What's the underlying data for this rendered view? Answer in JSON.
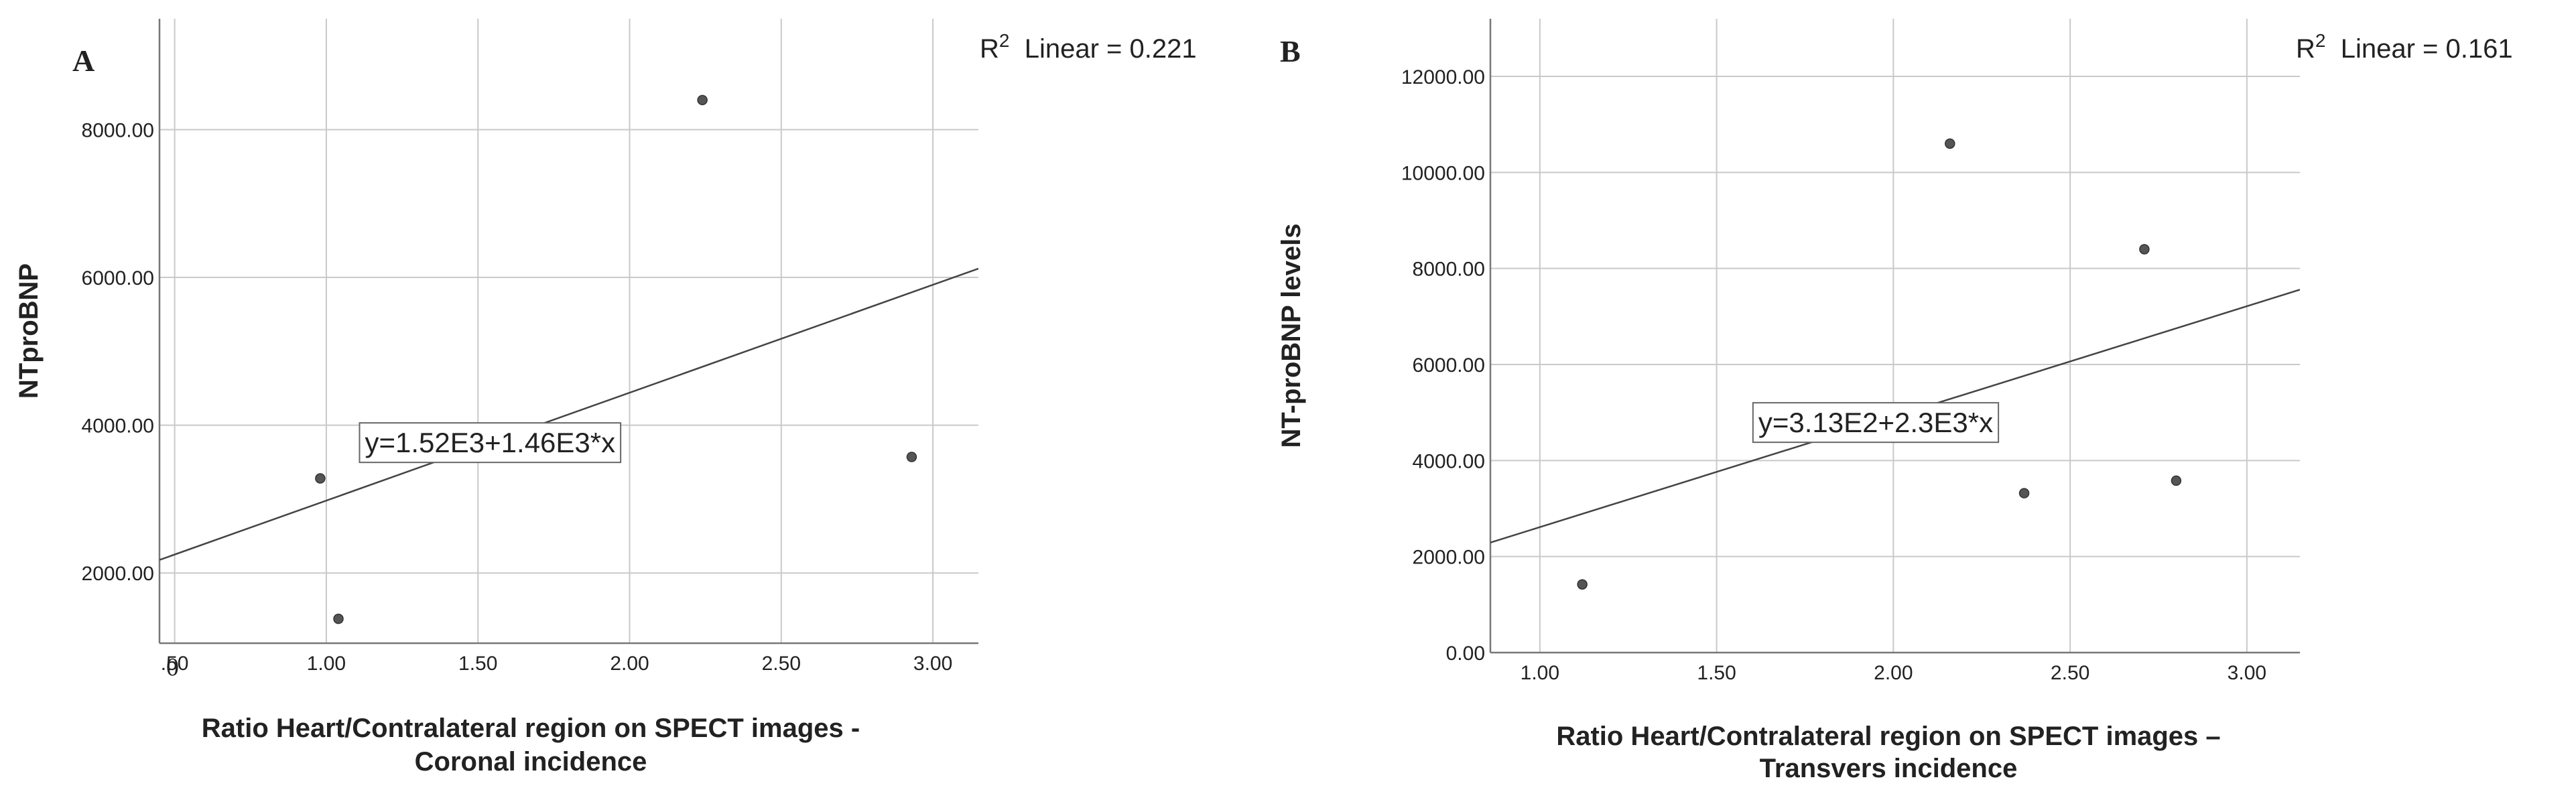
{
  "chart_data": [
    {
      "type": "scatter",
      "panel_label": "A",
      "xlabel_line1": "Ratio Heart/Contralateral region on SPECT images -",
      "xlabel_line2": "Coronal incidence",
      "ylabel": "NTproBNP",
      "xlim": [
        0.45,
        3.15
      ],
      "ylim": [
        1050,
        9500
      ],
      "x_ticks": [
        0.5,
        1.0,
        1.5,
        2.0,
        2.5,
        3.0
      ],
      "x_tick_labels": [
        ".50",
        "1.00",
        "1.50",
        "2.00",
        "2.50",
        "3.00"
      ],
      "y_ticks": [
        2000,
        4000,
        6000,
        8000
      ],
      "y_tick_labels": [
        "2000.00",
        "4000.00",
        "6000.00",
        "8000.00"
      ],
      "origin_label": "0",
      "grid": true,
      "points": [
        {
          "x": 0.98,
          "y": 3280
        },
        {
          "x": 1.04,
          "y": 1380
        },
        {
          "x": 2.24,
          "y": 8400
        },
        {
          "x": 2.93,
          "y": 3570
        }
      ],
      "fit_line": {
        "intercept": 1520,
        "slope": 1460
      },
      "equation": "y=1.52E3+1.46E3*x",
      "equation_x": 1.54,
      "r2_label": "Linear = 0.221",
      "r2_prefix": "R",
      "r2_sup": "2"
    },
    {
      "type": "scatter",
      "panel_label": "B",
      "xlabel_line1": "Ratio Heart/Contralateral region on SPECT images –",
      "xlabel_line2": "Transvers incidence",
      "ylabel": "NT-proBNP levels",
      "xlim": [
        0.86,
        3.15
      ],
      "ylim": [
        0,
        13200
      ],
      "x_ticks": [
        1.0,
        1.5,
        2.0,
        2.5,
        3.0
      ],
      "x_tick_labels": [
        "1.00",
        "1.50",
        "2.00",
        "2.50",
        "3.00"
      ],
      "y_ticks": [
        0,
        2000,
        4000,
        6000,
        8000,
        10000,
        12000
      ],
      "y_tick_labels": [
        "0.00",
        "2000.00",
        "4000.00",
        "6000.00",
        "8000.00",
        "10000.00",
        "12000.00"
      ],
      "origin_label": "",
      "grid": true,
      "points": [
        {
          "x": 1.12,
          "y": 1420
        },
        {
          "x": 2.16,
          "y": 10600
        },
        {
          "x": 2.37,
          "y": 3320
        },
        {
          "x": 2.71,
          "y": 8400
        },
        {
          "x": 2.8,
          "y": 3580
        }
      ],
      "fit_line": {
        "intercept": 313,
        "slope": 2300
      },
      "equation": "y=3.13E2+2.3E3*x",
      "equation_x": 1.95,
      "r2_label": "Linear = 0.161",
      "r2_prefix": "R",
      "r2_sup": "2"
    }
  ],
  "colors": {
    "axis": "#777777",
    "grid": "#c9c9c9",
    "point_fill": "#555555",
    "point_stroke": "#333333",
    "fit_line": "#444444",
    "text": "#222222"
  }
}
